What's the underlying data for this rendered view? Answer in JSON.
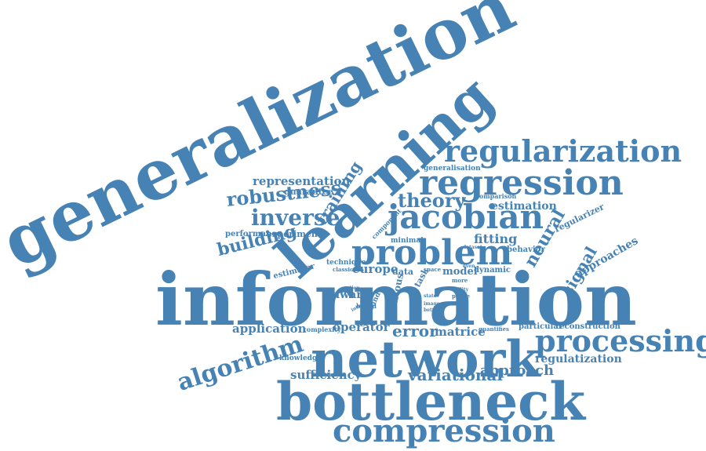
{
  "color": "#4682b4",
  "words": [
    {
      "id": "generalization",
      "text": "generalization"
    },
    {
      "id": "information",
      "text": "information"
    },
    {
      "id": "learning",
      "text": "learning"
    },
    {
      "id": "network",
      "text": "network"
    },
    {
      "id": "bottleneck",
      "text": "bottleneck"
    },
    {
      "id": "regularization",
      "text": "regularization"
    },
    {
      "id": "regression",
      "text": "regression"
    },
    {
      "id": "jacobian",
      "text": "jacobian"
    },
    {
      "id": "problem",
      "text": "problem"
    },
    {
      "id": "processing",
      "text": "processing"
    },
    {
      "id": "compression",
      "text": "compression"
    },
    {
      "id": "algorithm",
      "text": "algorithm"
    },
    {
      "id": "inverse",
      "text": "inverse"
    },
    {
      "id": "robustness",
      "text": "robustness"
    },
    {
      "id": "theory",
      "text": "theory"
    },
    {
      "id": "training",
      "text": "training"
    },
    {
      "id": "neural",
      "text": "neural"
    },
    {
      "id": "signal",
      "text": "signal"
    },
    {
      "id": "building",
      "text": "building"
    },
    {
      "id": "representation",
      "text": "representation"
    },
    {
      "id": "error",
      "text": "error"
    },
    {
      "id": "variational",
      "text": "variational"
    },
    {
      "id": "approach",
      "text": "approach"
    },
    {
      "id": "operator",
      "text": "operator"
    },
    {
      "id": "sufficiency",
      "text": "sufficiency"
    },
    {
      "id": "application",
      "text": "application"
    },
    {
      "id": "matrice",
      "text": "matrice"
    },
    {
      "id": "regulatization",
      "text": "regulatization"
    },
    {
      "id": "europe",
      "text": "europe"
    },
    {
      "id": "fitting",
      "text": "fitting"
    },
    {
      "id": "estimation",
      "text": "estimation"
    },
    {
      "id": "approaches",
      "text": "approaches"
    },
    {
      "id": "model",
      "text": "model"
    },
    {
      "id": "experiment",
      "text": "experiment"
    },
    {
      "id": "performance",
      "text": "performance"
    },
    {
      "id": "guarantee",
      "text": "guarantee"
    },
    {
      "id": "regularizer",
      "text": "regularizer"
    },
    {
      "id": "reconstruction",
      "text": "reconstruction"
    },
    {
      "id": "particular",
      "text": "particular"
    },
    {
      "id": "quantifies",
      "text": "quantifies"
    },
    {
      "id": "aware",
      "text": "aware"
    },
    {
      "id": "various",
      "text": "various"
    },
    {
      "id": "dynamic",
      "text": "dynamic"
    },
    {
      "id": "behavior",
      "text": "behavior"
    },
    {
      "id": "estimator",
      "text": "estimator"
    },
    {
      "id": "comparison",
      "text": "comparison"
    },
    {
      "id": "generalisation",
      "text": "generalisation"
    },
    {
      "id": "minimal",
      "text": "minimal"
    },
    {
      "id": "component",
      "text": "component"
    },
    {
      "id": "technique",
      "text": "technique"
    },
    {
      "id": "classical",
      "text": "classical"
    },
    {
      "id": "data",
      "text": "data"
    },
    {
      "id": "space",
      "text": "space"
    },
    {
      "id": "knowledge",
      "text": "knowledge"
    },
    {
      "id": "complexity",
      "text": "complexity"
    },
    {
      "id": "based",
      "text": "based"
    },
    {
      "id": "bound",
      "text": "bound"
    },
    {
      "id": "phase",
      "text": "phase"
    },
    {
      "id": "task",
      "text": "task"
    },
    {
      "id": "more",
      "text": "more"
    },
    {
      "id": "dataset",
      "text": "dataset"
    },
    {
      "id": "ability",
      "text": "ability"
    },
    {
      "id": "notion",
      "text": "notion"
    },
    {
      "id": "interval",
      "text": "interval"
    },
    {
      "id": "image",
      "text": "image"
    },
    {
      "id": "better",
      "text": "better"
    },
    {
      "id": "state",
      "text": "state"
    },
    {
      "id": "even",
      "text": "even"
    }
  ]
}
